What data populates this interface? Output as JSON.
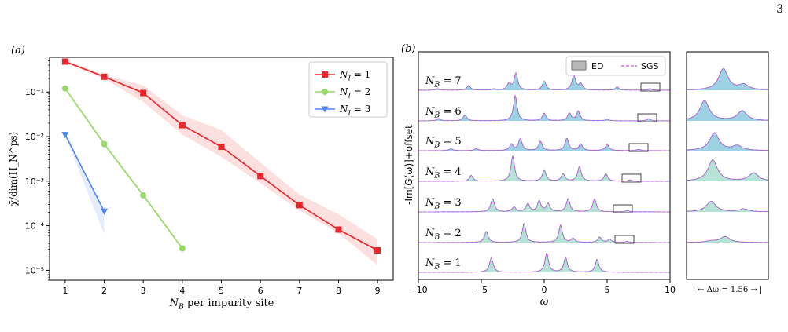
{
  "page_number": "3",
  "colors": {
    "red": "#e8262b",
    "green": "#98d86a",
    "blue": "#4f86f0",
    "ed_fill": "#9ed9c8",
    "ed_fill_blue": "#7cc3dc",
    "sgs": "#c45ee0"
  },
  "chart_data": [
    {
      "type": "line",
      "panel_label": "(a)",
      "xlabel": "N_B per impurity site",
      "ylabel": "χ̄/dim(H_N^ps)",
      "yscale": "log",
      "xlim": [
        0.6,
        9.4
      ],
      "ylim": [
        6e-06,
        0.6
      ],
      "xticks": [
        "1",
        "2",
        "3",
        "4",
        "5",
        "6",
        "7",
        "8",
        "9"
      ],
      "yticks": [
        {
          "value": 0.1,
          "label": "10⁻¹"
        },
        {
          "value": 0.01,
          "label": "10⁻²"
        },
        {
          "value": 0.001,
          "label": "10⁻³"
        },
        {
          "value": 0.0001,
          "label": "10⁻⁴"
        },
        {
          "value": 1e-05,
          "label": "10⁻⁵"
        }
      ],
      "legend_position": "top-right",
      "series": [
        {
          "name": "N_I = 1",
          "color": "#e8262b",
          "marker": "square",
          "x": [
            1,
            2,
            3,
            4,
            5,
            6,
            7,
            8,
            9
          ],
          "y": [
            0.48,
            0.22,
            0.095,
            0.018,
            0.0059,
            0.0013,
            0.00029,
            8.2e-05,
            2.8e-05
          ],
          "lower": [
            0.44,
            0.2,
            0.06,
            0.011,
            0.0035,
            0.0009,
            0.00022,
            6.8e-05,
            1.3e-05
          ],
          "upper": [
            0.52,
            0.24,
            0.14,
            0.03,
            0.014,
            0.0026,
            0.0005,
            0.00018,
            5e-05
          ]
        },
        {
          "name": "N_I = 2",
          "color": "#98d86a",
          "marker": "circle",
          "x": [
            1,
            2,
            3,
            4
          ],
          "y": [
            0.12,
            0.0068,
            0.00048,
            3.1e-05
          ],
          "lower": [
            0.11,
            0.006,
            0.00043,
            2.8e-05
          ],
          "upper": [
            0.13,
            0.0076,
            0.00053,
            3.4e-05
          ]
        },
        {
          "name": "N_I = 3",
          "color": "#4f86f0",
          "marker": "triangle-down",
          "x": [
            1,
            2
          ],
          "y": [
            0.011,
            0.00021
          ],
          "lower": [
            0.0102,
            6.5e-05
          ],
          "upper": [
            0.0118,
            0.00021
          ]
        }
      ]
    },
    {
      "type": "line",
      "panel_label": "(b)",
      "xlabel": "ω",
      "ylabel": "-Im[G(ω)]+offset",
      "xlim": [
        -10,
        10
      ],
      "xticks": [
        "−10",
        "−5",
        "0",
        "5",
        "10"
      ],
      "legend_position": "top-right",
      "legend": [
        "ED",
        "SGS"
      ],
      "series": [
        {
          "name": "N_B = 7",
          "fill": "blue",
          "peaks": [
            {
              "x": -8.5,
              "h": 0.06
            },
            {
              "x": -6,
              "h": 0.18
            },
            {
              "x": -4,
              "h": 0.05
            },
            {
              "x": -2.8,
              "h": 0.25
            },
            {
              "x": -2.25,
              "h": 0.62
            },
            {
              "x": 0,
              "h": 0.33
            },
            {
              "x": 2.35,
              "h": 0.57
            },
            {
              "x": 2.9,
              "h": 0.24
            },
            {
              "x": 5.8,
              "h": 0.12
            },
            {
              "x": 8.4,
              "h": 0.06
            }
          ]
        },
        {
          "name": "N_B = 6",
          "fill": "blue",
          "peaks": [
            {
              "x": -8.4,
              "h": 0.08
            },
            {
              "x": -6.3,
              "h": 0.22
            },
            {
              "x": -2.3,
              "h": 0.95
            },
            {
              "x": 0,
              "h": 0.28
            },
            {
              "x": 2.0,
              "h": 0.28
            },
            {
              "x": 2.7,
              "h": 0.36
            },
            {
              "x": 5.0,
              "h": 0.06
            },
            {
              "x": 8.3,
              "h": 0.08
            }
          ]
        },
        {
          "name": "N_B = 5",
          "fill": "blue",
          "peaks": [
            {
              "x": -7.4,
              "h": 0.07
            },
            {
              "x": -5.4,
              "h": 0.08
            },
            {
              "x": -2.6,
              "h": 0.24
            },
            {
              "x": -1.9,
              "h": 0.45
            },
            {
              "x": -0.3,
              "h": 0.35
            },
            {
              "x": 1.8,
              "h": 0.46
            },
            {
              "x": 2.9,
              "h": 0.25
            },
            {
              "x": 5.0,
              "h": 0.24
            },
            {
              "x": 7.5,
              "h": 0.05
            }
          ]
        },
        {
          "name": "N_B = 4",
          "fill": "green",
          "peaks": [
            {
              "x": -5.8,
              "h": 0.22
            },
            {
              "x": -2.5,
              "h": 0.95
            },
            {
              "x": 0,
              "h": 0.42
            },
            {
              "x": 1.5,
              "h": 0.28
            },
            {
              "x": 2.8,
              "h": 0.55
            },
            {
              "x": 4.9,
              "h": 0.28
            },
            {
              "x": 6.8,
              "h": 0.05
            }
          ]
        },
        {
          "name": "N_B = 3",
          "fill": "green",
          "peaks": [
            {
              "x": -4.1,
              "h": 0.5
            },
            {
              "x": -2.4,
              "h": 0.18
            },
            {
              "x": -1.3,
              "h": 0.3
            },
            {
              "x": -0.4,
              "h": 0.4
            },
            {
              "x": 0.3,
              "h": 0.3
            },
            {
              "x": 1.9,
              "h": 0.5
            },
            {
              "x": 4.0,
              "h": 0.48
            },
            {
              "x": 6.6,
              "h": 0.05
            }
          ]
        },
        {
          "name": "N_B = 2",
          "fill": "green",
          "peaks": [
            {
              "x": -4.6,
              "h": 0.42
            },
            {
              "x": -1.6,
              "h": 0.72
            },
            {
              "x": 1.3,
              "h": 0.65
            },
            {
              "x": 2.3,
              "h": 0.15
            },
            {
              "x": 4.4,
              "h": 0.2
            },
            {
              "x": 5.2,
              "h": 0.12
            },
            {
              "x": 6.6,
              "h": 0.04
            }
          ]
        },
        {
          "name": "N_B = 1",
          "fill": "green",
          "peaks": [
            {
              "x": -4.2,
              "h": 0.55
            },
            {
              "x": 0.2,
              "h": 0.72
            },
            {
              "x": 1.7,
              "h": 0.55
            },
            {
              "x": 4.2,
              "h": 0.48
            }
          ]
        }
      ]
    },
    {
      "type": "line",
      "panel_label": "",
      "xlabel": "| ← Δω = 1.56 → |",
      "series": [
        {
          "name": "N_B = 7 zoom",
          "fill": "blue",
          "peaks": [
            {
              "x": 0.45,
              "h": 0.9
            },
            {
              "x": 0.7,
              "h": 0.22
            }
          ]
        },
        {
          "name": "N_B = 6 zoom",
          "fill": "blue",
          "peaks": [
            {
              "x": 0.22,
              "h": 0.85
            },
            {
              "x": 0.68,
              "h": 0.42
            }
          ]
        },
        {
          "name": "N_B = 5 zoom",
          "fill": "blue",
          "peaks": [
            {
              "x": 0.34,
              "h": 0.75
            },
            {
              "x": 0.62,
              "h": 0.2
            }
          ]
        },
        {
          "name": "N_B = 4 zoom",
          "fill": "green",
          "peaks": [
            {
              "x": 0.32,
              "h": 0.9
            },
            {
              "x": 0.82,
              "h": 0.35
            }
          ]
        },
        {
          "name": "N_B = 3 zoom",
          "fill": "green",
          "peaks": [
            {
              "x": 0.3,
              "h": 0.45
            },
            {
              "x": 0.7,
              "h": 0.12
            }
          ]
        },
        {
          "name": "N_B = 2 zoom",
          "fill": "green",
          "peaks": [
            {
              "x": 0.47,
              "h": 0.25
            },
            {
              "x": 0.3,
              "h": 0.06
            }
          ]
        }
      ]
    }
  ]
}
